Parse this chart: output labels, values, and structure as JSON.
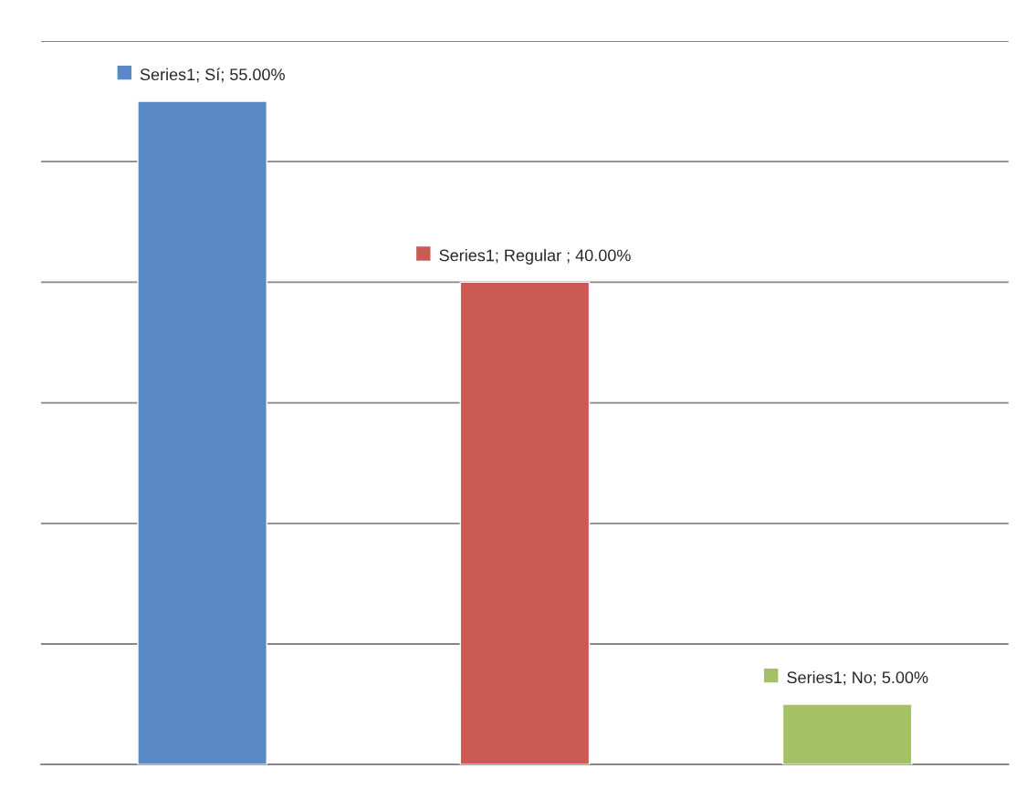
{
  "chart_data": {
    "type": "bar",
    "categories": [
      null,
      null,
      null
    ],
    "values": [
      55,
      40,
      5
    ],
    "colors": [
      "#5a8ac6",
      "#cb5a55",
      "#a4c263"
    ],
    "value_labels": [
      "Series1; Sí; 55.00%",
      "Series1; Regular ; 40.00%",
      "Series1; No; 5.00%"
    ],
    "ylim": [
      0,
      60
    ],
    "yticks": [
      {
        "value": 0,
        "label": null
      },
      {
        "value": 10,
        "label": null
      },
      {
        "value": 20,
        "label": null
      },
      {
        "value": 30,
        "label": null
      },
      {
        "value": 40,
        "label": null
      },
      {
        "value": 50,
        "label": null
      },
      {
        "value": 60,
        "label": null
      }
    ],
    "grid": "y"
  }
}
